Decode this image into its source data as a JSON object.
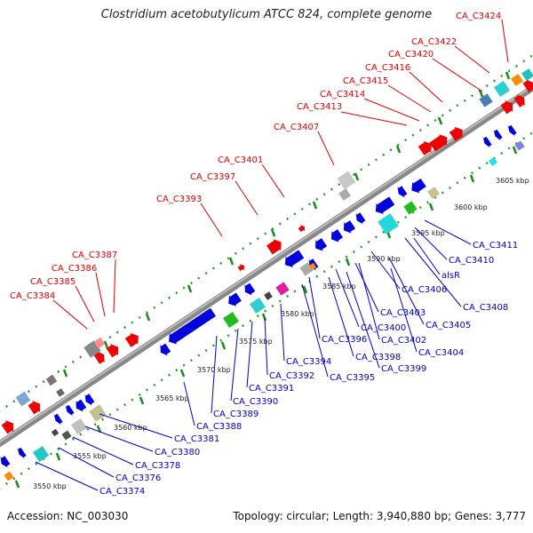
{
  "title": "Clostridium acetobutylicum ATCC 824, complete genome",
  "footer": {
    "accession": "Accession: NC_003030",
    "stats": "Topology: circular; Length: 3,940,880 bp; Genes: 3,777"
  },
  "scale_ticks": [
    "3550 kbp",
    "3555 kbp",
    "3560 kbp",
    "3565 kbp",
    "3570 kbp",
    "3575 kbp",
    "3580 kbp",
    "3585 kbp",
    "3590 kbp",
    "3595 kbp",
    "3600 kbp",
    "3605 kbp"
  ],
  "upper_labels": [
    "CA_C3424",
    "CA_C3422",
    "CA_C3420",
    "CA_C3416",
    "CA_C3415",
    "CA_C3414",
    "CA_C3413",
    "CA_C3407",
    "CA_C3401",
    "CA_C3397",
    "CA_C3393",
    "CA_C3387",
    "CA_C3386",
    "CA_C3385",
    "CA_C3384"
  ],
  "lower_labels": [
    "CA_C3411",
    "CA_C3410",
    "alsR",
    "CA_C3408",
    "CA_C3406",
    "CA_C3405",
    "CA_C3403",
    "CA_C3404",
    "CA_C3400",
    "CA_C3402",
    "CA_C3399",
    "CA_C3396",
    "CA_C3398",
    "CA_C3394",
    "CA_C3395",
    "CA_C3392",
    "CA_C3391",
    "CA_C3390",
    "CA_C3389",
    "CA_C3388",
    "CA_C3381",
    "CA_C3380",
    "CA_C3378",
    "CA_C3376",
    "CA_C3374"
  ]
}
